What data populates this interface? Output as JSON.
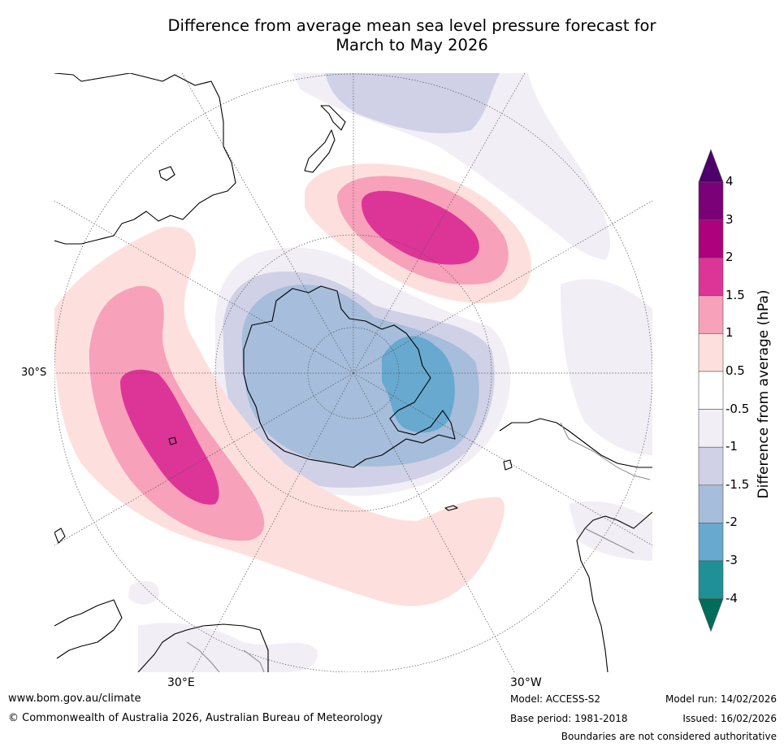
{
  "title": {
    "line1": "Difference from average mean sea level pressure forecast for",
    "line2": "March to May 2026"
  },
  "map": {
    "projection": "south-polar-stereographic",
    "lat_label": "30°S",
    "lon_labels": {
      "east": "30°E",
      "west": "30°W"
    },
    "colors": {
      "ocean_background": "#ffffff",
      "coastline": "#000000",
      "graticule": "#555555"
    }
  },
  "colorbar": {
    "title": "Difference from average (hPa)",
    "tick_labels": [
      "4",
      "3",
      "2",
      "1.5",
      "1",
      "0.5",
      "-0.5",
      "-1",
      "-1.5",
      "-2",
      "-3",
      "-4"
    ],
    "bins": [
      {
        "range": "> 4",
        "color": "#4d006a"
      },
      {
        "range": "3 to 4",
        "color": "#7a0177"
      },
      {
        "range": "2 to 3",
        "color": "#ae017e"
      },
      {
        "range": "1.5 to 2",
        "color": "#dd3497"
      },
      {
        "range": "1 to 1.5",
        "color": "#f7a1bb"
      },
      {
        "range": "0.5 to 1",
        "color": "#fde0dd"
      },
      {
        "range": "-0.5 to 0.5",
        "color": "#ffffff"
      },
      {
        "range": "-1 to -0.5",
        "color": "#f1eef5"
      },
      {
        "range": "-1.5 to -1",
        "color": "#d0d1e6"
      },
      {
        "range": "-2 to -1.5",
        "color": "#a6bddb"
      },
      {
        "range": "-3 to -2",
        "color": "#67a9cf"
      },
      {
        "range": "-4 to -3",
        "color": "#1f9096"
      },
      {
        "range": "< -4",
        "color": "#016c59"
      }
    ]
  },
  "footer": {
    "website": "www.bom.gov.au/climate",
    "copyright": "© Commonwealth of Australia 2026, Australian Bureau of Meteorology",
    "model": "Model: ACCESS-S2",
    "base_period": "Base period: 1981-2018",
    "model_run": "Model run: 14/02/2026",
    "issued": "Issued: 16/02/2026",
    "disclaimer": "Boundaries are not considered authoritative"
  }
}
